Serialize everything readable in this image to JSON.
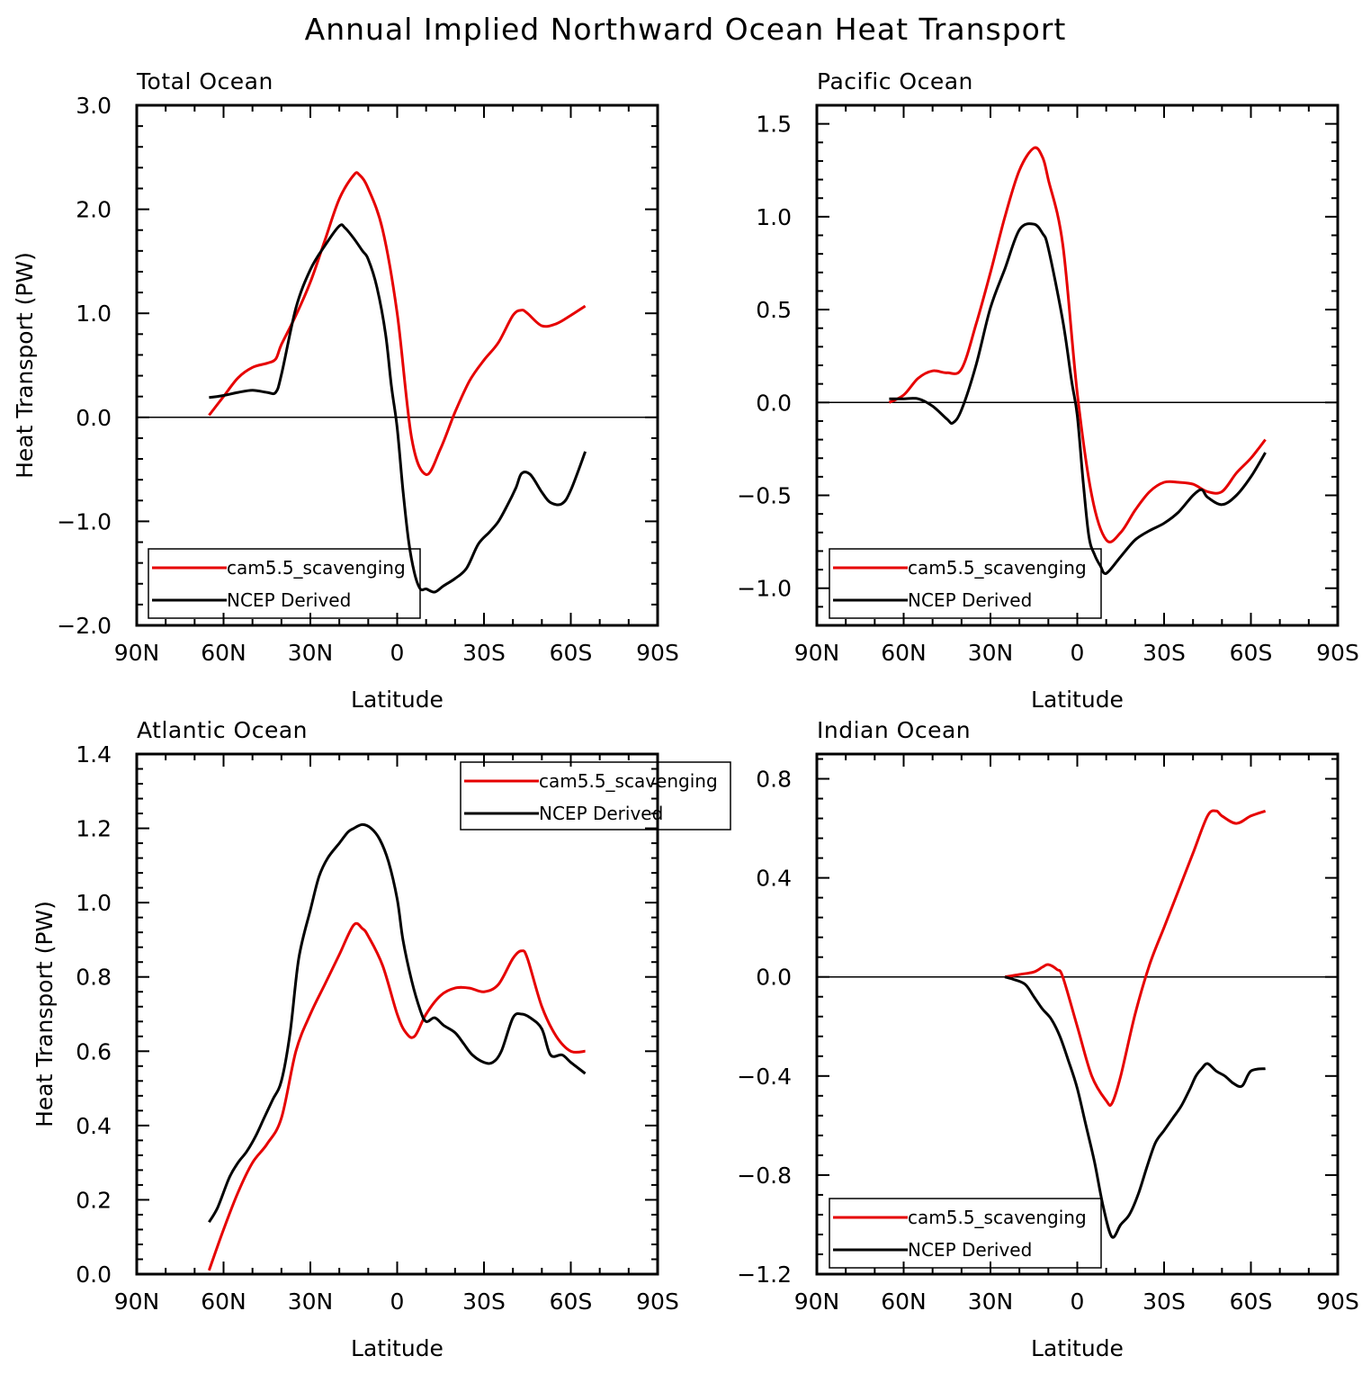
{
  "figure_title": "Annual Implied Northward Ocean Heat Transport",
  "colors": {
    "model": "#e60000",
    "obs": "#000000"
  },
  "chart_data": [
    {
      "type": "line",
      "title": "Total Ocean",
      "xlabel": "Latitude",
      "ylabel": "Heat Transport (PW)",
      "xlim": [
        -90,
        90
      ],
      "ylim": [
        -2.0,
        3.0
      ],
      "x_ticks": [
        -90,
        -60,
        -30,
        0,
        30,
        60,
        90
      ],
      "x_tick_labels": [
        "90N",
        "60N",
        "30N",
        "0",
        "30S",
        "60S",
        "90S"
      ],
      "y_ticks": [
        -2.0,
        -1.0,
        0.0,
        1.0,
        2.0,
        3.0
      ],
      "y_tick_labels": [
        "−2.0",
        "−1.0",
        "0.0",
        "1.0",
        "2.0",
        "3.0"
      ],
      "legend_position": "bottom-left",
      "series": [
        {
          "name": "cam5.5_scavenging",
          "color": "#e60000",
          "x": [
            -65,
            -60,
            -55,
            -50,
            -45,
            -42,
            -40,
            -35,
            -30,
            -25,
            -20,
            -15,
            -13,
            -10,
            -5,
            0,
            5,
            10,
            15,
            20,
            25,
            30,
            35,
            40,
            43,
            45,
            50,
            55,
            60,
            65
          ],
          "y": [
            0.02,
            0.2,
            0.38,
            0.48,
            0.52,
            0.56,
            0.7,
            0.98,
            1.3,
            1.7,
            2.1,
            2.33,
            2.33,
            2.2,
            1.8,
            1.0,
            -0.2,
            -0.55,
            -0.3,
            0.05,
            0.35,
            0.55,
            0.72,
            0.98,
            1.03,
            1.0,
            0.88,
            0.9,
            0.98,
            1.07
          ]
        },
        {
          "name": "NCEP Derived",
          "color": "#000000",
          "x": [
            -65,
            -60,
            -55,
            -50,
            -45,
            -42,
            -40,
            -35,
            -30,
            -25,
            -20,
            -18,
            -15,
            -12,
            -10,
            -7,
            -4,
            -2,
            0,
            2,
            4,
            6,
            8,
            10,
            13,
            16,
            20,
            24,
            28,
            32,
            35,
            38,
            41,
            43,
            46,
            50,
            53,
            57,
            60,
            65
          ],
          "y": [
            0.19,
            0.21,
            0.24,
            0.26,
            0.24,
            0.24,
            0.41,
            1.05,
            1.42,
            1.65,
            1.84,
            1.82,
            1.72,
            1.6,
            1.52,
            1.25,
            0.8,
            0.3,
            -0.1,
            -0.7,
            -1.2,
            -1.5,
            -1.65,
            -1.65,
            -1.68,
            -1.62,
            -1.55,
            -1.45,
            -1.22,
            -1.1,
            -1.0,
            -0.85,
            -0.68,
            -0.54,
            -0.55,
            -0.72,
            -0.82,
            -0.83,
            -0.7,
            -0.33
          ]
        }
      ]
    },
    {
      "type": "line",
      "title": "Pacific Ocean",
      "xlabel": "Latitude",
      "ylabel": "",
      "xlim": [
        -90,
        90
      ],
      "ylim": [
        -1.2,
        1.6
      ],
      "x_ticks": [
        -90,
        -60,
        -30,
        0,
        30,
        60,
        90
      ],
      "x_tick_labels": [
        "90N",
        "60N",
        "30N",
        "0",
        "30S",
        "60S",
        "90S"
      ],
      "y_ticks": [
        -1.0,
        -0.5,
        0.0,
        0.5,
        1.0,
        1.5
      ],
      "y_tick_labels": [
        "−1.0",
        "−0.5",
        "0.0",
        "0.5",
        "1.0",
        "1.5"
      ],
      "legend_position": "bottom-left",
      "series": [
        {
          "name": "cam5.5_scavenging",
          "color": "#e60000",
          "x": [
            -65,
            -60,
            -55,
            -50,
            -45,
            -40,
            -35,
            -30,
            -25,
            -20,
            -15,
            -12,
            -10,
            -5,
            0,
            5,
            10,
            15,
            20,
            25,
            30,
            35,
            40,
            45,
            50,
            55,
            60,
            65
          ],
          "y": [
            0.0,
            0.04,
            0.13,
            0.17,
            0.16,
            0.18,
            0.42,
            0.7,
            1.0,
            1.25,
            1.37,
            1.32,
            1.2,
            0.85,
            0.05,
            -0.5,
            -0.74,
            -0.7,
            -0.58,
            -0.48,
            -0.43,
            -0.43,
            -0.44,
            -0.48,
            -0.48,
            -0.38,
            -0.3,
            -0.2
          ]
        },
        {
          "name": "NCEP Derived",
          "color": "#000000",
          "x": [
            -65,
            -60,
            -55,
            -50,
            -45,
            -43,
            -40,
            -35,
            -30,
            -25,
            -20,
            -15,
            -12,
            -10,
            -5,
            -2,
            0,
            2,
            4,
            6,
            8,
            10,
            15,
            20,
            25,
            30,
            35,
            40,
            43,
            45,
            50,
            55,
            60,
            65
          ],
          "y": [
            0.02,
            0.02,
            0.02,
            -0.02,
            -0.09,
            -0.11,
            -0.04,
            0.2,
            0.51,
            0.72,
            0.93,
            0.96,
            0.91,
            0.83,
            0.44,
            0.12,
            -0.07,
            -0.42,
            -0.72,
            -0.82,
            -0.88,
            -0.92,
            -0.83,
            -0.74,
            -0.69,
            -0.65,
            -0.59,
            -0.5,
            -0.47,
            -0.51,
            -0.55,
            -0.5,
            -0.4,
            -0.27
          ]
        }
      ]
    },
    {
      "type": "line",
      "title": "Atlantic Ocean",
      "xlabel": "Latitude",
      "ylabel": "Heat Transport (PW)",
      "xlim": [
        -90,
        90
      ],
      "ylim": [
        0.0,
        1.4
      ],
      "x_ticks": [
        -90,
        -60,
        -30,
        0,
        30,
        60,
        90
      ],
      "x_tick_labels": [
        "90N",
        "60N",
        "30N",
        "0",
        "30S",
        "60S",
        "90S"
      ],
      "y_ticks": [
        0.0,
        0.2,
        0.4,
        0.6,
        0.8,
        1.0,
        1.2,
        1.4
      ],
      "y_tick_labels": [
        "0.0",
        "0.2",
        "0.4",
        "0.6",
        "0.8",
        "1.0",
        "1.2",
        "1.4"
      ],
      "legend_position": "top-right",
      "series": [
        {
          "name": "cam5.5_scavenging",
          "color": "#e60000",
          "x": [
            -65,
            -60,
            -55,
            -50,
            -45,
            -40,
            -35,
            -30,
            -25,
            -20,
            -15,
            -12,
            -10,
            -5,
            0,
            3,
            6,
            10,
            15,
            20,
            25,
            30,
            35,
            40,
            43,
            45,
            50,
            55,
            60,
            65
          ],
          "y": [
            0.01,
            0.12,
            0.22,
            0.3,
            0.35,
            0.42,
            0.6,
            0.7,
            0.78,
            0.86,
            0.94,
            0.93,
            0.91,
            0.83,
            0.7,
            0.65,
            0.64,
            0.7,
            0.75,
            0.77,
            0.77,
            0.76,
            0.78,
            0.85,
            0.87,
            0.85,
            0.72,
            0.64,
            0.6,
            0.6
          ]
        },
        {
          "name": "NCEP Derived",
          "color": "#000000",
          "x": [
            -65,
            -62,
            -58,
            -55,
            -52,
            -49,
            -46,
            -43,
            -40,
            -37,
            -34,
            -30,
            -27,
            -24,
            -20,
            -17,
            -15,
            -12,
            -9,
            -6,
            -3,
            0,
            2,
            5,
            8,
            10,
            13,
            16,
            20,
            23,
            26,
            30,
            33,
            36,
            40,
            43,
            46,
            50,
            53,
            57,
            60,
            65
          ],
          "y": [
            0.14,
            0.18,
            0.26,
            0.3,
            0.33,
            0.37,
            0.42,
            0.47,
            0.52,
            0.65,
            0.85,
            0.98,
            1.07,
            1.12,
            1.16,
            1.19,
            1.2,
            1.21,
            1.2,
            1.17,
            1.11,
            1.01,
            0.9,
            0.79,
            0.71,
            0.68,
            0.69,
            0.67,
            0.65,
            0.62,
            0.59,
            0.57,
            0.57,
            0.6,
            0.69,
            0.7,
            0.69,
            0.66,
            0.59,
            0.59,
            0.57,
            0.54
          ]
        }
      ]
    },
    {
      "type": "line",
      "title": "Indian Ocean",
      "xlabel": "Latitude",
      "ylabel": "",
      "xlim": [
        -90,
        90
      ],
      "ylim": [
        -1.2,
        0.9
      ],
      "x_ticks": [
        -90,
        -60,
        -30,
        0,
        30,
        60,
        90
      ],
      "x_tick_labels": [
        "90N",
        "60N",
        "30N",
        "0",
        "30S",
        "60S",
        "90S"
      ],
      "y_ticks": [
        -1.2,
        -0.8,
        -0.4,
        0.0,
        0.4,
        0.8
      ],
      "y_tick_labels": [
        "−1.2",
        "−0.8",
        "−0.4",
        "0.0",
        "0.4",
        "0.8"
      ],
      "legend_position": "bottom-left",
      "series": [
        {
          "name": "cam5.5_scavenging",
          "color": "#e60000",
          "x": [
            -25,
            -20,
            -15,
            -12,
            -10,
            -7,
            -5,
            0,
            5,
            10,
            12,
            15,
            20,
            25,
            30,
            35,
            40,
            45,
            48,
            50,
            55,
            60,
            65
          ],
          "y": [
            0.0,
            0.01,
            0.02,
            0.04,
            0.05,
            0.03,
            0.0,
            -0.2,
            -0.4,
            -0.5,
            -0.51,
            -0.4,
            -0.15,
            0.05,
            0.2,
            0.35,
            0.5,
            0.65,
            0.67,
            0.65,
            0.62,
            0.65,
            0.67
          ]
        },
        {
          "name": "NCEP Derived",
          "color": "#000000",
          "x": [
            -25,
            -22,
            -18,
            -15,
            -12,
            -9,
            -6,
            -3,
            0,
            3,
            6,
            9,
            12,
            15,
            18,
            21,
            24,
            27,
            30,
            33,
            36,
            39,
            41,
            43,
            45,
            48,
            51,
            54,
            57,
            60,
            65
          ],
          "y": [
            0.0,
            -0.01,
            -0.03,
            -0.08,
            -0.13,
            -0.17,
            -0.24,
            -0.34,
            -0.45,
            -0.6,
            -0.75,
            -0.93,
            -1.05,
            -1.0,
            -0.96,
            -0.88,
            -0.77,
            -0.67,
            -0.62,
            -0.57,
            -0.52,
            -0.45,
            -0.4,
            -0.37,
            -0.35,
            -0.38,
            -0.4,
            -0.43,
            -0.44,
            -0.38,
            -0.37
          ]
        }
      ]
    }
  ]
}
